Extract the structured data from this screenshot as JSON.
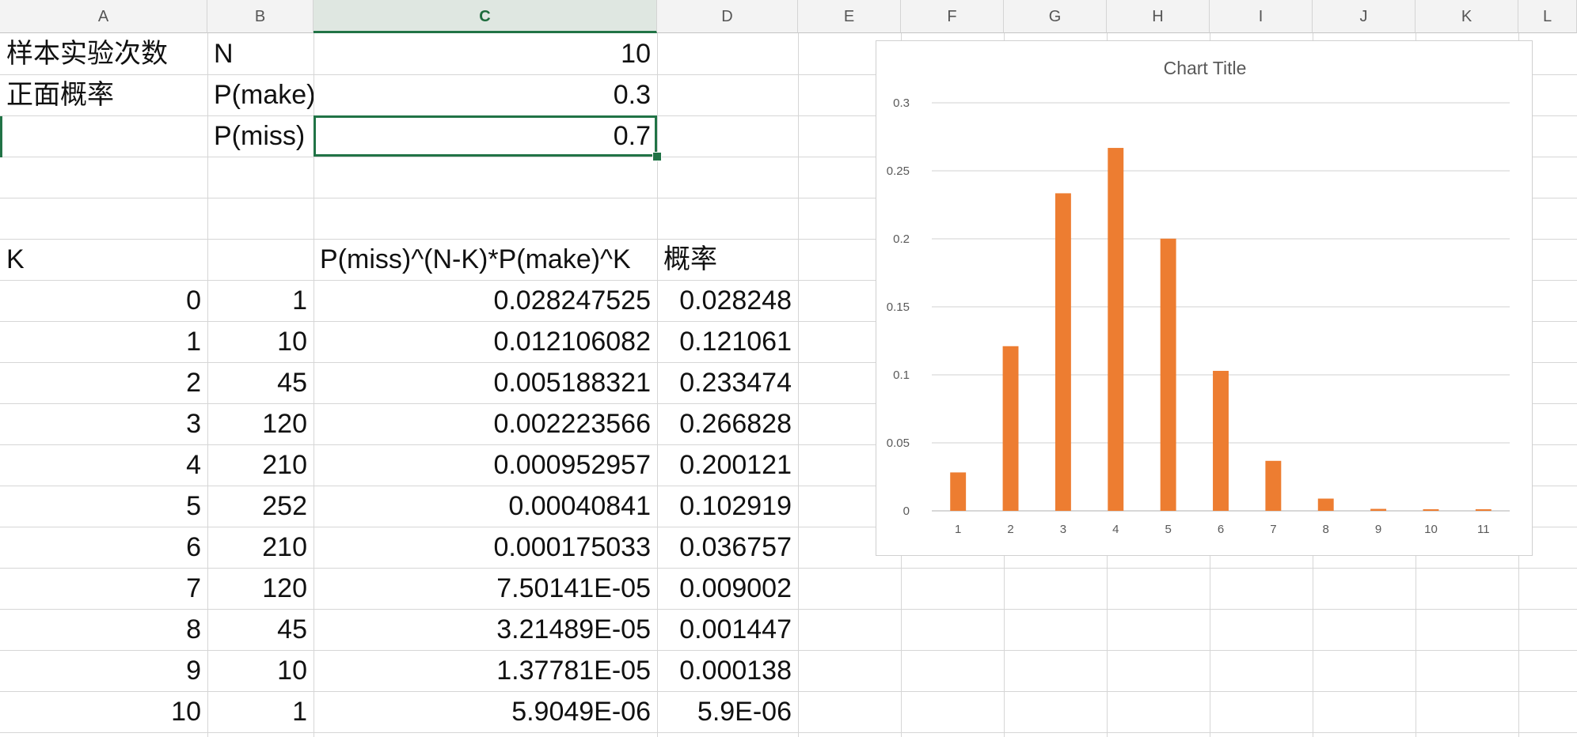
{
  "columns": [
    "A",
    "B",
    "C",
    "D",
    "E",
    "F",
    "G",
    "H",
    "I",
    "J",
    "K",
    "L"
  ],
  "selected_column": "C",
  "params": {
    "row1": {
      "a": "样本实验次数",
      "b": "N",
      "c": "10"
    },
    "row2": {
      "a": "正面概率",
      "b": "P(make)",
      "c": "0.3"
    },
    "row3": {
      "b": "P(miss)",
      "c": "0.7"
    }
  },
  "table": {
    "headers": {
      "a": "K",
      "c": "P(miss)^(N-K)*P(make)^K",
      "d": "概率"
    },
    "rows": [
      {
        "k": "0",
        "comb": "1",
        "term": "0.028247525",
        "prob": "0.028248"
      },
      {
        "k": "1",
        "comb": "10",
        "term": "0.012106082",
        "prob": "0.121061"
      },
      {
        "k": "2",
        "comb": "45",
        "term": "0.005188321",
        "prob": "0.233474"
      },
      {
        "k": "3",
        "comb": "120",
        "term": "0.002223566",
        "prob": "0.266828"
      },
      {
        "k": "4",
        "comb": "210",
        "term": "0.000952957",
        "prob": "0.200121"
      },
      {
        "k": "5",
        "comb": "252",
        "term": "0.00040841",
        "prob": "0.102919"
      },
      {
        "k": "6",
        "comb": "210",
        "term": "0.000175033",
        "prob": "0.036757"
      },
      {
        "k": "7",
        "comb": "120",
        "term": "7.50141E-05",
        "prob": "0.009002"
      },
      {
        "k": "8",
        "comb": "45",
        "term": "3.21489E-05",
        "prob": "0.001447"
      },
      {
        "k": "9",
        "comb": "10",
        "term": "1.37781E-05",
        "prob": "0.000138"
      },
      {
        "k": "10",
        "comb": "1",
        "term": "5.9049E-06",
        "prob": "5.9E-06"
      }
    ]
  },
  "chart_data": {
    "type": "bar",
    "title": "Chart Title",
    "categories": [
      "1",
      "2",
      "3",
      "4",
      "5",
      "6",
      "7",
      "8",
      "9",
      "10",
      "11"
    ],
    "values": [
      0.028248,
      0.121061,
      0.233474,
      0.266828,
      0.200121,
      0.102919,
      0.036757,
      0.009002,
      0.001447,
      0.000138,
      5.9e-06
    ],
    "ylim": [
      0,
      0.3
    ],
    "yticks": [
      "0",
      "0.05",
      "0.1",
      "0.15",
      "0.2",
      "0.25",
      "0.3"
    ],
    "grid": true,
    "bar_color": "#ed7d31"
  },
  "colors": {
    "accent": "#217346"
  }
}
